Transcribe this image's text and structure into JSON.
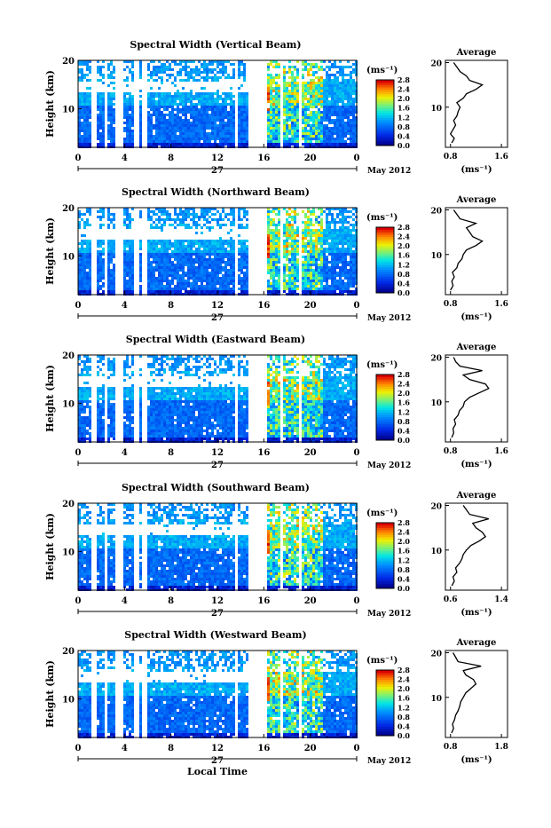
{
  "chart_data": [
    {
      "type": "heatmap",
      "title": "Spectral Width (Vertical Beam)",
      "ylabel": "Height (km)",
      "yticks": [
        "10",
        "20"
      ],
      "xticks": [
        "0",
        "4",
        "8",
        "12",
        "16",
        "20",
        "0"
      ],
      "day_label": "27",
      "date_label": "May 2012",
      "colorbar": {
        "unit": "(ms⁻¹)",
        "ticks": [
          "0.0",
          "0.4",
          "0.8",
          "1.2",
          "1.6",
          "2.0",
          "2.4",
          "2.8"
        ]
      },
      "average": {
        "title": "Average",
        "xlabel": "(ms⁻¹)",
        "xticks": [
          "0.8",
          "1.6"
        ],
        "yticks": [
          "10",
          "20"
        ],
        "profile": [
          [
            0.82,
            2
          ],
          [
            0.86,
            3
          ],
          [
            0.8,
            4
          ],
          [
            0.84,
            5
          ],
          [
            0.88,
            6
          ],
          [
            0.85,
            7
          ],
          [
            0.9,
            8
          ],
          [
            0.92,
            9
          ],
          [
            0.95,
            10
          ],
          [
            0.9,
            11
          ],
          [
            1.0,
            12
          ],
          [
            1.05,
            13
          ],
          [
            1.2,
            14
          ],
          [
            1.3,
            15
          ],
          [
            1.1,
            16
          ],
          [
            1.05,
            17
          ],
          [
            0.95,
            18
          ],
          [
            0.9,
            19
          ],
          [
            0.85,
            20
          ]
        ]
      }
    },
    {
      "type": "heatmap",
      "title": "Spectral Width (Northward Beam)",
      "ylabel": "Height (km)",
      "yticks": [
        "10",
        "20"
      ],
      "xticks": [
        "0",
        "4",
        "8",
        "12",
        "16",
        "20",
        "0"
      ],
      "day_label": "27",
      "date_label": "May 2012",
      "colorbar": {
        "unit": "(ms⁻¹)",
        "ticks": [
          "0.0",
          "0.4",
          "0.8",
          "1.2",
          "1.6",
          "2.0",
          "2.4",
          "2.8"
        ]
      },
      "average": {
        "title": "Average",
        "xlabel": "(ms⁻¹)",
        "xticks": [
          "0.8",
          "1.6"
        ],
        "yticks": [
          "10",
          "20"
        ],
        "profile": [
          [
            0.8,
            2
          ],
          [
            0.84,
            3
          ],
          [
            0.82,
            4
          ],
          [
            0.86,
            5
          ],
          [
            0.83,
            6
          ],
          [
            0.9,
            7
          ],
          [
            0.92,
            8
          ],
          [
            0.98,
            9
          ],
          [
            1.0,
            10
          ],
          [
            1.05,
            11
          ],
          [
            1.2,
            12
          ],
          [
            1.3,
            13
          ],
          [
            1.15,
            14
          ],
          [
            1.1,
            15
          ],
          [
            1.05,
            16
          ],
          [
            1.2,
            17
          ],
          [
            0.95,
            18
          ],
          [
            0.9,
            19
          ],
          [
            0.85,
            20
          ]
        ]
      }
    },
    {
      "type": "heatmap",
      "title": "Spectral Width (Eastward Beam)",
      "ylabel": "Height (km)",
      "yticks": [
        "10",
        "20"
      ],
      "xticks": [
        "0",
        "4",
        "8",
        "12",
        "16",
        "20",
        "0"
      ],
      "day_label": "27",
      "date_label": "May 2012",
      "colorbar": {
        "unit": "(ms⁻¹)",
        "ticks": [
          "0.0",
          "0.4",
          "0.8",
          "1.2",
          "1.6",
          "2.0",
          "2.4",
          "2.8"
        ]
      },
      "average": {
        "title": "Average",
        "xlabel": "(ms⁻¹)",
        "xticks": [
          "0.8",
          "1.6"
        ],
        "yticks": [
          "10",
          "20"
        ],
        "profile": [
          [
            0.82,
            2
          ],
          [
            0.85,
            3
          ],
          [
            0.84,
            4
          ],
          [
            0.88,
            5
          ],
          [
            0.86,
            6
          ],
          [
            0.92,
            7
          ],
          [
            0.94,
            8
          ],
          [
            1.0,
            9
          ],
          [
            1.02,
            10
          ],
          [
            1.1,
            11
          ],
          [
            1.25,
            12
          ],
          [
            1.4,
            13
          ],
          [
            1.35,
            14
          ],
          [
            1.1,
            15
          ],
          [
            1.0,
            16
          ],
          [
            1.3,
            17
          ],
          [
            0.95,
            18
          ],
          [
            0.88,
            19
          ],
          [
            0.85,
            20
          ]
        ]
      }
    },
    {
      "type": "heatmap",
      "title": "Spectral Width (Southward Beam)",
      "ylabel": "Height (km)",
      "yticks": [
        "10",
        "20"
      ],
      "xticks": [
        "0",
        "4",
        "8",
        "12",
        "16",
        "20",
        "0"
      ],
      "day_label": "27",
      "date_label": "May 2012",
      "colorbar": {
        "unit": "(ms⁻¹)",
        "ticks": [
          "0.0",
          "0.4",
          "0.8",
          "1.2",
          "1.6",
          "2.0",
          "2.4",
          "2.8"
        ]
      },
      "average": {
        "title": "Average",
        "xlabel": "(ms⁻¹)",
        "xticks": [
          "0.6",
          "1.4"
        ],
        "yticks": [
          "10",
          "20"
        ],
        "profile": [
          [
            0.62,
            2
          ],
          [
            0.66,
            3
          ],
          [
            0.64,
            4
          ],
          [
            0.7,
            5
          ],
          [
            0.68,
            6
          ],
          [
            0.74,
            7
          ],
          [
            0.78,
            8
          ],
          [
            0.8,
            9
          ],
          [
            0.85,
            10
          ],
          [
            0.92,
            11
          ],
          [
            1.05,
            12
          ],
          [
            1.15,
            13
          ],
          [
            1.1,
            14
          ],
          [
            1.0,
            15
          ],
          [
            0.95,
            16
          ],
          [
            1.2,
            17
          ],
          [
            0.9,
            18
          ],
          [
            0.85,
            19
          ],
          [
            0.8,
            20
          ]
        ]
      }
    },
    {
      "type": "heatmap",
      "title": "Spectral Width (Westward Beam)",
      "ylabel": "Height (km)",
      "yticks": [
        "10",
        "20"
      ],
      "xticks": [
        "0",
        "4",
        "8",
        "12",
        "16",
        "20",
        "0"
      ],
      "day_label": "27",
      "date_label": "May 2012",
      "xlabel": "Local Time",
      "colorbar": {
        "unit": "(ms⁻¹)",
        "ticks": [
          "0.0",
          "0.4",
          "0.8",
          "1.2",
          "1.6",
          "2.0",
          "2.4",
          "2.8"
        ]
      },
      "average": {
        "title": "Average",
        "xlabel": "(ms⁻¹)",
        "xticks": [
          "0.8",
          "1.8"
        ],
        "yticks": [
          "10",
          "20"
        ],
        "profile": [
          [
            0.82,
            2
          ],
          [
            0.86,
            3
          ],
          [
            0.84,
            4
          ],
          [
            0.88,
            5
          ],
          [
            0.9,
            6
          ],
          [
            0.95,
            7
          ],
          [
            0.98,
            8
          ],
          [
            1.0,
            9
          ],
          [
            1.05,
            10
          ],
          [
            1.1,
            11
          ],
          [
            1.2,
            12
          ],
          [
            1.3,
            13
          ],
          [
            1.25,
            14
          ],
          [
            1.1,
            15
          ],
          [
            1.05,
            16
          ],
          [
            1.4,
            17
          ],
          [
            0.95,
            18
          ],
          [
            0.9,
            19
          ],
          [
            0.85,
            20
          ]
        ]
      }
    }
  ]
}
